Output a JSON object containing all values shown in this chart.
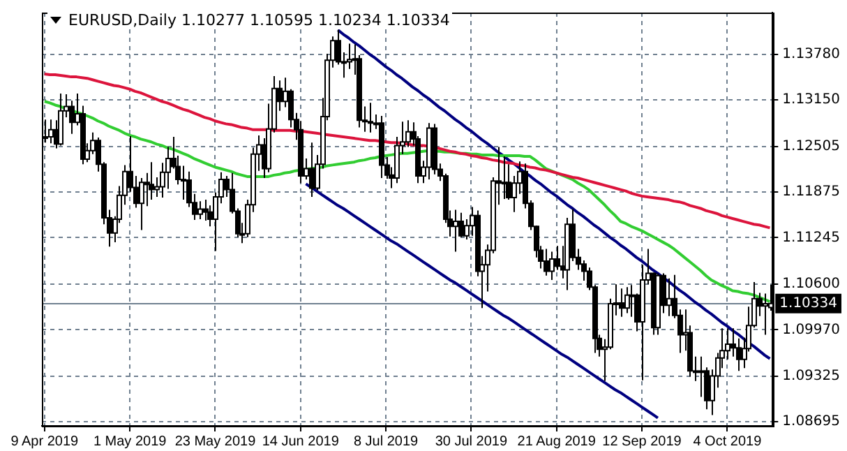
{
  "chart_data": {
    "type": "candlestick",
    "title": "EURUSD,Daily 1.10277 1.10595 1.10234 1.10334",
    "categories": [
      "9 Apr 2019",
      null,
      null,
      null,
      null,
      null,
      null,
      null,
      null,
      null,
      null,
      null,
      null,
      null,
      null,
      null,
      "1 May 2019",
      null,
      null,
      null,
      null,
      null,
      null,
      null,
      null,
      null,
      null,
      null,
      null,
      null,
      null,
      null,
      "23 May 2019",
      null,
      null,
      null,
      null,
      null,
      null,
      null,
      null,
      null,
      null,
      null,
      null,
      null,
      null,
      null,
      "14 Jun 2019",
      null,
      null,
      null,
      null,
      null,
      null,
      null,
      null,
      null,
      null,
      null,
      null,
      null,
      null,
      null,
      "8 Jul 2019",
      null,
      null,
      null,
      null,
      null,
      null,
      null,
      null,
      null,
      null,
      null,
      null,
      null,
      null,
      null,
      "30 Jul 2019",
      null,
      null,
      null,
      null,
      null,
      null,
      null,
      null,
      null,
      null,
      null,
      null,
      null,
      null,
      null,
      "21 Aug 2019",
      null,
      null,
      null,
      null,
      null,
      null,
      null,
      null,
      null,
      null,
      null,
      null,
      null,
      null,
      null,
      "12 Sep 2019",
      null,
      null,
      null,
      null,
      null,
      null,
      null,
      null,
      null,
      null,
      null,
      null,
      null,
      null,
      null,
      "4 Oct 2019",
      null,
      null,
      null,
      null,
      null,
      null,
      null,
      null
    ],
    "ohlc": [
      [
        1.1262,
        1.1288,
        1.1256,
        1.1264
      ],
      [
        1.1264,
        1.1288,
        1.1255,
        1.1274
      ],
      [
        1.1274,
        1.1287,
        1.1248,
        1.1254
      ],
      [
        1.1254,
        1.1324,
        1.1252,
        1.13
      ],
      [
        1.13,
        1.1323,
        1.1291,
        1.1306
      ],
      [
        1.1306,
        1.1314,
        1.1268,
        1.1284
      ],
      [
        1.1284,
        1.1324,
        1.128,
        1.1296
      ],
      [
        1.1296,
        1.1307,
        1.1226,
        1.1233
      ],
      [
        1.1233,
        1.1255,
        1.1229,
        1.1245
      ],
      [
        1.1245,
        1.127,
        1.124,
        1.1259
      ],
      [
        1.1259,
        1.1263,
        1.1216,
        1.1226
      ],
      [
        1.1226,
        1.1229,
        1.1143,
        1.1152
      ],
      [
        1.1152,
        1.1163,
        1.1112,
        1.1131
      ],
      [
        1.1131,
        1.1154,
        1.1118,
        1.115
      ],
      [
        1.115,
        1.1196,
        1.1145,
        1.1183
      ],
      [
        1.1183,
        1.1225,
        1.117,
        1.1216
      ],
      [
        1.1216,
        1.1265,
        1.1188,
        1.1194
      ],
      [
        1.1194,
        1.121,
        1.1166,
        1.1172
      ],
      [
        1.1172,
        1.1207,
        1.1135,
        1.1201
      ],
      [
        1.1201,
        1.1214,
        1.1168,
        1.1198
      ],
      [
        1.1198,
        1.1229,
        1.1177,
        1.1191
      ],
      [
        1.1191,
        1.1208,
        1.1181,
        1.1195
      ],
      [
        1.1195,
        1.1228,
        1.118,
        1.1215
      ],
      [
        1.1215,
        1.125,
        1.1192,
        1.1234
      ],
      [
        1.1234,
        1.1264,
        1.122,
        1.1223
      ],
      [
        1.1223,
        1.1238,
        1.1198,
        1.1205
      ],
      [
        1.1205,
        1.1224,
        1.1177,
        1.1204
      ],
      [
        1.1204,
        1.1216,
        1.1167,
        1.1173
      ],
      [
        1.1173,
        1.1185,
        1.1149,
        1.1157
      ],
      [
        1.1157,
        1.1175,
        1.115,
        1.1164
      ],
      [
        1.1164,
        1.1177,
        1.1148,
        1.116
      ],
      [
        1.116,
        1.1169,
        1.114,
        1.115
      ],
      [
        1.115,
        1.1187,
        1.1106,
        1.1181
      ],
      [
        1.1181,
        1.1215,
        1.1172,
        1.1205
      ],
      [
        1.1205,
        1.121,
        1.1181,
        1.1191
      ],
      [
        1.1191,
        1.1214,
        1.1158,
        1.1161
      ],
      [
        1.1161,
        1.1165,
        1.1125,
        1.113
      ],
      [
        1.113,
        1.1145,
        1.1117,
        1.113
      ],
      [
        1.113,
        1.1177,
        1.1125,
        1.117
      ],
      [
        1.117,
        1.1249,
        1.116,
        1.124
      ],
      [
        1.124,
        1.1266,
        1.1217,
        1.1253
      ],
      [
        1.1253,
        1.1262,
        1.1207,
        1.122
      ],
      [
        1.122,
        1.131,
        1.1215,
        1.1275
      ],
      [
        1.1275,
        1.1348,
        1.127,
        1.1331
      ],
      [
        1.1331,
        1.1342,
        1.13,
        1.1313
      ],
      [
        1.1313,
        1.1346,
        1.1305,
        1.1327
      ],
      [
        1.1327,
        1.133,
        1.1277,
        1.1288
      ],
      [
        1.1288,
        1.1297,
        1.126,
        1.1274
      ],
      [
        1.1274,
        1.1286,
        1.12,
        1.121
      ],
      [
        1.121,
        1.1234,
        1.1205,
        1.122
      ],
      [
        1.122,
        1.1256,
        1.1181,
        1.1193
      ],
      [
        1.1193,
        1.1239,
        1.119,
        1.1226
      ],
      [
        1.1226,
        1.1318,
        1.122,
        1.1292
      ],
      [
        1.1292,
        1.1379,
        1.1287,
        1.137
      ],
      [
        1.137,
        1.1403,
        1.136,
        1.1397
      ],
      [
        1.1397,
        1.1412,
        1.1364,
        1.1368
      ],
      [
        1.1368,
        1.1381,
        1.1346,
        1.1368
      ],
      [
        1.1368,
        1.1393,
        1.1358,
        1.1371
      ],
      [
        1.1371,
        1.1392,
        1.135,
        1.1372
      ],
      [
        1.1372,
        1.1377,
        1.1277,
        1.1287
      ],
      [
        1.1287,
        1.1306,
        1.1271,
        1.1285
      ],
      [
        1.1285,
        1.1311,
        1.127,
        1.1283
      ],
      [
        1.1283,
        1.1295,
        1.1275,
        1.1283
      ],
      [
        1.1283,
        1.1293,
        1.1207,
        1.1225
      ],
      [
        1.1225,
        1.1236,
        1.1206,
        1.1211
      ],
      [
        1.1211,
        1.1222,
        1.1193,
        1.1207
      ],
      [
        1.1207,
        1.1264,
        1.12,
        1.1252
      ],
      [
        1.1252,
        1.1285,
        1.124,
        1.1257
      ],
      [
        1.1257,
        1.1287,
        1.125,
        1.1271
      ],
      [
        1.1271,
        1.1284,
        1.1252,
        1.1261
      ],
      [
        1.1261,
        1.1265,
        1.12,
        1.121
      ],
      [
        1.121,
        1.1231,
        1.12,
        1.1222
      ],
      [
        1.1222,
        1.1283,
        1.1205,
        1.1276
      ],
      [
        1.1276,
        1.1282,
        1.1212,
        1.1219
      ],
      [
        1.1219,
        1.1227,
        1.1203,
        1.121
      ],
      [
        1.121,
        1.1213,
        1.1145,
        1.115
      ],
      [
        1.115,
        1.1162,
        1.1126,
        1.114
      ],
      [
        1.114,
        1.1163,
        1.1105,
        1.1147
      ],
      [
        1.1147,
        1.1159,
        1.1125,
        1.1127
      ],
      [
        1.1127,
        1.115,
        1.1122,
        1.1141
      ],
      [
        1.1141,
        1.1167,
        1.1127,
        1.1155
      ],
      [
        1.1155,
        1.1162,
        1.1071,
        1.1078
      ],
      [
        1.1078,
        1.1099,
        1.1027,
        1.1087
      ],
      [
        1.1087,
        1.1115,
        1.105,
        1.1107
      ],
      [
        1.1107,
        1.1208,
        1.1103,
        1.1203
      ],
      [
        1.1203,
        1.125,
        1.117,
        1.12
      ],
      [
        1.12,
        1.1237,
        1.1178,
        1.1201
      ],
      [
        1.1201,
        1.1226,
        1.1177,
        1.118
      ],
      [
        1.118,
        1.121,
        1.116,
        1.12
      ],
      [
        1.12,
        1.123,
        1.1185,
        1.1216
      ],
      [
        1.1216,
        1.1227,
        1.1165,
        1.1172
      ],
      [
        1.1172,
        1.1176,
        1.1135,
        1.114
      ],
      [
        1.114,
        1.1141,
        1.1097,
        1.1107
      ],
      [
        1.1107,
        1.1113,
        1.1082,
        1.1092
      ],
      [
        1.1092,
        1.1109,
        1.1072,
        1.1078
      ],
      [
        1.1078,
        1.1105,
        1.1066,
        1.1095
      ],
      [
        1.1095,
        1.1113,
        1.108,
        1.1085
      ],
      [
        1.1085,
        1.1113,
        1.1068,
        1.108
      ],
      [
        1.108,
        1.1152,
        1.1052,
        1.1143
      ],
      [
        1.1143,
        1.1164,
        1.1092,
        1.1097
      ],
      [
        1.1097,
        1.1109,
        1.108,
        1.1088
      ],
      [
        1.1088,
        1.1093,
        1.1065,
        1.1078
      ],
      [
        1.1078,
        1.1083,
        1.1052,
        1.1056
      ],
      [
        1.1056,
        1.1059,
        1.0965,
        1.0985
      ],
      [
        1.0985,
        1.099,
        1.096,
        1.097
      ],
      [
        1.097,
        1.0984,
        1.0926,
        1.0973
      ],
      [
        1.0973,
        1.104,
        1.097,
        1.1033
      ],
      [
        1.1033,
        1.106,
        1.1017,
        1.1034
      ],
      [
        1.1034,
        1.1054,
        1.1015,
        1.1027
      ],
      [
        1.1027,
        1.1056,
        1.102,
        1.1045
      ],
      [
        1.1045,
        1.1059,
        1.1015,
        1.1045
      ],
      [
        1.1045,
        1.1047,
        1.0995,
        1.1008
      ],
      [
        1.1008,
        1.1087,
        1.0927,
        1.1066
      ],
      [
        1.1066,
        1.1109,
        1.106,
        1.1075
      ],
      [
        1.1075,
        1.1076,
        1.099,
        1.1
      ],
      [
        1.1,
        1.1075,
        1.099,
        1.1072
      ],
      [
        1.1072,
        1.1075,
        1.102,
        1.1031
      ],
      [
        1.1031,
        1.1068,
        1.1016,
        1.104
      ],
      [
        1.104,
        1.1073,
        1.1013,
        1.1017
      ],
      [
        1.1017,
        1.1025,
        1.0965,
        1.099
      ],
      [
        1.099,
        1.1025,
        1.0968,
        1.0993
      ],
      [
        1.0993,
        1.1003,
        1.0932,
        1.094
      ],
      [
        1.094,
        1.096,
        1.0926,
        1.094
      ],
      [
        1.094,
        1.096,
        1.0904,
        1.094
      ],
      [
        1.094,
        1.0945,
        1.0887,
        1.0899
      ],
      [
        1.0899,
        1.0942,
        1.0879,
        1.0933
      ],
      [
        1.0933,
        1.0965,
        1.0917,
        1.0958
      ],
      [
        1.0958,
        1.0999,
        1.0944,
        1.0968
      ],
      [
        1.0968,
        1.0999,
        1.0956,
        1.0977
      ],
      [
        1.0977,
        1.0999,
        1.096,
        1.0972
      ],
      [
        1.0972,
        1.0985,
        1.094,
        1.0956
      ],
      [
        1.0956,
        1.0986,
        1.0944,
        1.0971
      ],
      [
        1.0971,
        1.1029,
        1.0967,
        1.1003
      ],
      [
        1.1003,
        1.1063,
        1.1,
        1.104
      ],
      [
        1.104,
        1.1048,
        1.1016,
        1.103
      ],
      [
        1.103,
        1.1047,
        1.099,
        1.1033
      ],
      [
        1.10277,
        1.10595,
        1.10234,
        1.10334
      ]
    ],
    "series": [
      {
        "type": "line",
        "color": "#dc143c",
        "values": [
          1.1351,
          1.135,
          1.135,
          1.1349,
          1.1348,
          1.1347,
          1.1347,
          1.1346,
          1.1345,
          1.1343,
          1.1341,
          1.1339,
          1.1337,
          1.1335,
          1.1334,
          1.1332,
          1.133,
          1.1327,
          1.1325,
          1.1322,
          1.1319,
          1.1316,
          1.1313,
          1.1311,
          1.1308,
          1.1305,
          1.1302,
          1.13,
          1.1297,
          1.1294,
          1.1291,
          1.1289,
          1.1286,
          1.1284,
          1.1282,
          1.1281,
          1.1279,
          1.1277,
          1.1276,
          1.1274,
          1.1274,
          1.1274,
          1.1274,
          1.1273,
          1.1273,
          1.1273,
          1.1273,
          1.1272,
          1.1272,
          1.1271,
          1.127,
          1.1269,
          1.1268,
          1.1267,
          1.1266,
          1.1265,
          1.1264,
          1.1263,
          1.1262,
          1.1261,
          1.126,
          1.1259,
          1.1259,
          1.1258,
          1.1257,
          1.1256,
          1.1256,
          1.1255,
          1.1254,
          1.1253,
          1.1252,
          1.1252,
          1.1251,
          1.1249,
          1.1248,
          1.1246,
          1.1244,
          1.1243,
          1.1241,
          1.124,
          1.1238,
          1.1237,
          1.1235,
          1.1234,
          1.1232,
          1.1231,
          1.1229,
          1.1228,
          1.1227,
          1.1225,
          1.1224,
          1.1222,
          1.1221,
          1.1219,
          1.1218,
          1.1216,
          1.1214,
          1.1212,
          1.121,
          1.1208,
          1.1207,
          1.1205,
          1.1203,
          1.1201,
          1.1199,
          1.1197,
          1.1195,
          1.1193,
          1.1191,
          1.1189,
          1.1186,
          1.1184,
          1.1182,
          1.1181,
          1.118,
          1.1179,
          1.1178,
          1.1177,
          1.1175,
          1.1174,
          1.1172,
          1.1169,
          1.1167,
          1.1165,
          1.1162,
          1.116,
          1.1158,
          1.1155,
          1.1153,
          1.1151,
          1.1149,
          1.1147,
          1.1145,
          1.1143,
          1.1142,
          1.114,
          1.1138
        ]
      },
      {
        "type": "line",
        "color": "#32cd32",
        "values": [
          1.1313,
          1.1311,
          1.1308,
          1.1306,
          1.1303,
          1.1301,
          1.1298,
          1.1296,
          1.1293,
          1.129,
          1.1286,
          1.1283,
          1.1279,
          1.1276,
          1.1273,
          1.1269,
          1.1266,
          1.1264,
          1.1261,
          1.1259,
          1.1257,
          1.1254,
          1.1252,
          1.1249,
          1.1247,
          1.1244,
          1.1241,
          1.1238,
          1.1234,
          1.1231,
          1.1228,
          1.1225,
          1.1222,
          1.122,
          1.1218,
          1.1216,
          1.1213,
          1.1211,
          1.1209,
          1.1209,
          1.1209,
          1.1209,
          1.1209,
          1.1211,
          1.1212,
          1.1214,
          1.1215,
          1.1217,
          1.1218,
          1.1219,
          1.122,
          1.1221,
          1.1222,
          1.1224,
          1.1225,
          1.1226,
          1.1227,
          1.1228,
          1.1229,
          1.1231,
          1.1232,
          1.1234,
          1.1235,
          1.1237,
          1.1238,
          1.1239,
          1.124,
          1.1241,
          1.1241,
          1.1242,
          1.1243,
          1.1244,
          1.1245,
          1.1244,
          1.1244,
          1.1243,
          1.1243,
          1.1242,
          1.1241,
          1.1241,
          1.124,
          1.124,
          1.1239,
          1.1239,
          1.1239,
          1.1238,
          1.1238,
          1.1238,
          1.1238,
          1.1238,
          1.1237,
          1.1237,
          1.1232,
          1.1226,
          1.122,
          1.1217,
          1.1214,
          1.1211,
          1.1208,
          1.1205,
          1.12,
          1.1196,
          1.1191,
          1.1184,
          1.1177,
          1.117,
          1.1162,
          1.1155,
          1.1147,
          1.1144,
          1.114,
          1.1137,
          1.1134,
          1.113,
          1.1126,
          1.1122,
          1.1118,
          1.1114,
          1.1109,
          1.1103,
          1.1097,
          1.1091,
          1.1085,
          1.1079,
          1.1072,
          1.1066,
          1.1062,
          1.1058,
          1.1055,
          1.1051,
          1.105,
          1.1048,
          1.1047,
          1.1045,
          1.1042,
          1.1039,
          1.1036
        ]
      },
      {
        "type": "line",
        "color": "#000080",
        "values": [
          null,
          null,
          null,
          null,
          null,
          null,
          null,
          null,
          null,
          null,
          null,
          null,
          null,
          null,
          null,
          null,
          null,
          null,
          null,
          null,
          null,
          null,
          null,
          null,
          null,
          null,
          null,
          null,
          null,
          null,
          null,
          null,
          null,
          null,
          null,
          null,
          null,
          null,
          null,
          null,
          null,
          null,
          null,
          null,
          null,
          null,
          null,
          null,
          null,
          null,
          null,
          null,
          null,
          null,
          null,
          1.1412,
          1.1406,
          1.1401,
          1.1395,
          1.139,
          1.1384,
          1.1378,
          1.1373,
          1.1367,
          1.1361,
          1.1356,
          1.135,
          1.1345,
          1.1339,
          1.1333,
          1.1328,
          1.1322,
          1.1317,
          1.1311,
          1.1305,
          1.13,
          1.1294,
          1.1288,
          1.1283,
          1.1277,
          1.1272,
          1.1266,
          1.126,
          1.1255,
          1.1249,
          1.1243,
          1.1238,
          1.1232,
          1.1227,
          1.1221,
          1.1215,
          1.121,
          1.1204,
          1.1199,
          1.1193,
          1.1187,
          1.1182,
          1.1176,
          1.117,
          1.1165,
          1.1159,
          1.1154,
          1.1148,
          1.1142,
          1.1137,
          1.1131,
          1.1125,
          1.112,
          1.1114,
          1.1109,
          1.1103,
          1.1097,
          1.1092,
          1.1086,
          1.108,
          1.1075,
          1.1069,
          1.1064,
          1.1058,
          1.1052,
          1.1047,
          1.1041,
          1.1035,
          1.103,
          1.1024,
          1.1019,
          1.1013,
          1.1007,
          1.1002,
          1.0996,
          1.0991,
          1.0985,
          1.0979,
          1.0974,
          1.0968,
          1.0962,
          1.0957
        ]
      },
      {
        "type": "line",
        "color": "#000080",
        "values": [
          null,
          null,
          null,
          null,
          null,
          null,
          null,
          null,
          null,
          null,
          null,
          null,
          null,
          null,
          null,
          null,
          null,
          null,
          null,
          null,
          null,
          null,
          null,
          null,
          null,
          null,
          null,
          null,
          null,
          null,
          null,
          null,
          null,
          null,
          null,
          null,
          null,
          null,
          null,
          null,
          null,
          null,
          null,
          null,
          null,
          null,
          null,
          null,
          null,
          1.1199,
          1.1194,
          1.1189,
          1.1184,
          1.1179,
          1.1174,
          1.1169,
          1.1165,
          1.116,
          1.1155,
          1.115,
          1.1145,
          1.114,
          1.1135,
          1.113,
          1.1125,
          1.112,
          1.1116,
          1.1111,
          1.1106,
          1.1101,
          1.1096,
          1.1091,
          1.1086,
          1.1081,
          1.1076,
          1.1071,
          1.1066,
          1.1062,
          1.1057,
          1.1052,
          1.1047,
          1.1042,
          1.1037,
          1.1032,
          1.1027,
          1.1022,
          1.1017,
          1.1013,
          1.1008,
          1.1003,
          1.0998,
          1.0993,
          1.0988,
          1.0983,
          1.0978,
          1.0973,
          1.0968,
          1.0963,
          1.0959,
          1.0954,
          1.0949,
          1.0944,
          1.0939,
          1.0934,
          1.0929,
          1.0924,
          1.0919,
          1.0914,
          1.091,
          1.0905,
          1.09,
          1.0895,
          1.089,
          1.0885,
          1.088,
          1.0875,
          null,
          null,
          null,
          null,
          null,
          null,
          null,
          null,
          null,
          null,
          null,
          null,
          null,
          null,
          null,
          null,
          null,
          null,
          null,
          null,
          null
        ]
      }
    ],
    "ylim": [
      1.0864,
      1.1436
    ],
    "yticks": [
      {
        "value": 1.08695,
        "label": "1.08695"
      },
      {
        "value": 1.09325,
        "label": "1.09325"
      },
      {
        "value": 1.0997,
        "label": "1.09970"
      },
      {
        "value": 1.106,
        "label": "1.10600"
      },
      {
        "value": 1.11245,
        "label": "1.11245"
      },
      {
        "value": 1.11875,
        "label": "1.11875"
      },
      {
        "value": 1.12505,
        "label": "1.12505"
      },
      {
        "value": 1.1315,
        "label": "1.13150"
      },
      {
        "value": 1.1378,
        "label": "1.13780"
      }
    ],
    "grid": true,
    "ref_lines": [
      {
        "axis": "y",
        "value": 1.10334,
        "label": "1.10334",
        "color": "#708090"
      }
    ]
  }
}
